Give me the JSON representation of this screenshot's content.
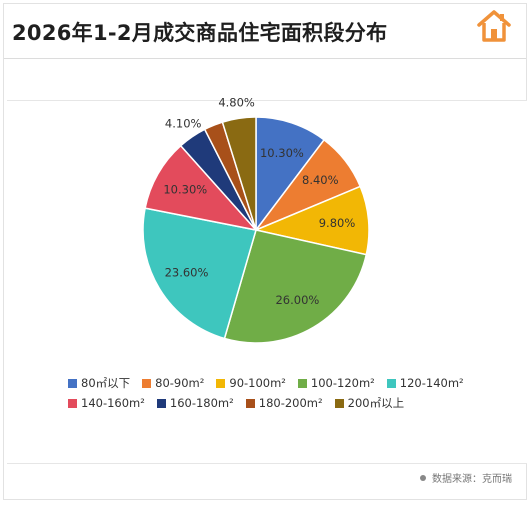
{
  "header": {
    "title": "2026年1-2月成交商品住宅面积段分布",
    "logo_icon": "house-icon",
    "logo_color": "#f0923a"
  },
  "chart_data": {
    "type": "pie",
    "title": "2026年1-2月成交商品住宅面积段分布",
    "categories": [
      "80㎡以下",
      "80-90m²",
      "90-100m²",
      "100-120m²",
      "120-140m²",
      "140-160m²",
      "160-180m²",
      "180-200m²",
      "200㎡以上"
    ],
    "values": [
      10.3,
      8.4,
      9.8,
      26.0,
      23.6,
      10.3,
      4.1,
      2.7,
      4.8
    ],
    "value_labels": [
      "10.30%",
      "8.40%",
      "9.80%",
      "26.00%",
      "23.60%",
      "10.30%",
      "4.10%",
      "",
      "4.80%"
    ],
    "colors": [
      "#4472c4",
      "#ed7d31",
      "#f2b705",
      "#70ad47",
      "#3ec6be",
      "#e34b5c",
      "#1f3a7a",
      "#a8501a",
      "#8a6a12"
    ],
    "legend_position": "bottom"
  },
  "footer": {
    "source": "数据来源：克而瑞"
  }
}
